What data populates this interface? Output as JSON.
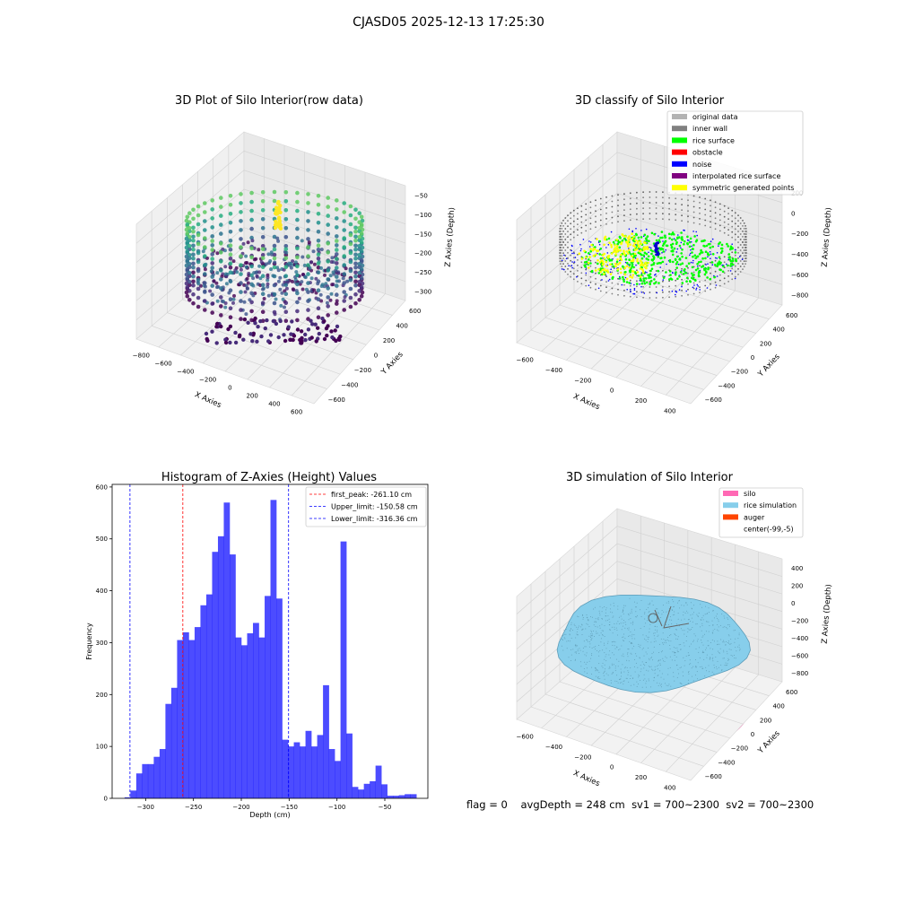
{
  "figure": {
    "suptitle": "CJASD05 2025-12-13 17:25:30",
    "status": {
      "flag": "flag = 0",
      "avg_depth": "avgDepth = 248 cm",
      "sv1": "sv1 = 700~2300",
      "sv2": "sv2 = 700~2300"
    }
  },
  "chart_data": [
    {
      "type": "scatter",
      "subtype": "3d-scatter",
      "title": "3D Plot of Silo Interior(row data)",
      "xlabel": "X Axies",
      "ylabel": "Y Axies",
      "zlabel": "Z Axies (Depth)",
      "x_ticks": [
        "−800",
        "−600",
        "−400",
        "−200",
        "0",
        "200",
        "400",
        "600"
      ],
      "y_ticks": [
        "−600",
        "−400",
        "−200",
        "0",
        "200",
        "400",
        "600"
      ],
      "z_ticks": [
        "−50",
        "−100",
        "−150",
        "−200",
        "−250",
        "−300"
      ],
      "colormap": "viridis",
      "grid": true
    },
    {
      "type": "scatter",
      "subtype": "3d-scatter",
      "title": "3D classify of Silo Interior",
      "xlabel": "X Axies",
      "ylabel": "Y Axies",
      "zlabel": "Z Axies (Depth)",
      "x_ticks": [
        "−600",
        "−400",
        "−200",
        "0",
        "200",
        "400"
      ],
      "y_ticks": [
        "−600",
        "−400",
        "−200",
        "0",
        "200",
        "400",
        "600"
      ],
      "z_ticks": [
        "200",
        "0",
        "−200",
        "−400",
        "−600",
        "−800"
      ],
      "z_partial_top_tick": "0",
      "legend": [
        {
          "label": "original data",
          "color": "#b3b3b3"
        },
        {
          "label": "inner wall",
          "color": "#808080"
        },
        {
          "label": "rice surface",
          "color": "#00ff00"
        },
        {
          "label": "obstacle",
          "color": "#ff0000"
        },
        {
          "label": "noise",
          "color": "#0000ff"
        },
        {
          "label": "interpolated rice surface",
          "color": "#800080"
        },
        {
          "label": "symmetric generated points",
          "color": "#ffff00"
        }
      ],
      "legend_position": "top-right",
      "silo_wire_color": "#ffb3d9",
      "grid": true
    },
    {
      "type": "bar",
      "subtype": "histogram",
      "title": "Histogram of Z-Axies (Height) Values",
      "xlabel": "Depth (cm)",
      "ylabel": "Frequency",
      "xlim": [
        -335,
        -5
      ],
      "ylim": [
        0,
        605
      ],
      "x_ticks": [
        -300,
        -250,
        -200,
        -150,
        -100,
        -50
      ],
      "x_tick_labels": [
        "−300",
        "−250",
        "−200",
        "−150",
        "−100",
        "−50"
      ],
      "y_ticks": [
        0,
        100,
        200,
        300,
        400,
        500,
        600
      ],
      "y_tick_labels": [
        "0",
        "100",
        "200",
        "300",
        "400",
        "500",
        "600"
      ],
      "bar_color": "#0000ff",
      "bar_alpha": 0.7,
      "bin_start": -322,
      "bin_width": 6.1,
      "values": [
        2,
        15,
        48,
        66,
        66,
        80,
        95,
        182,
        213,
        305,
        320,
        305,
        330,
        372,
        393,
        475,
        505,
        570,
        470,
        310,
        295,
        318,
        338,
        310,
        390,
        575,
        385,
        113,
        100,
        108,
        100,
        130,
        100,
        122,
        218,
        95,
        72,
        495,
        125,
        22,
        17,
        28,
        33,
        63,
        27,
        5,
        5,
        6,
        8,
        8
      ],
      "reference_lines": [
        {
          "name": "first_peak: -261.10 cm",
          "x": -261.1,
          "color": "#ff0000"
        },
        {
          "name": "Upper_limit: -150.58 cm",
          "x": -150.58,
          "color": "#0000ff"
        },
        {
          "name": "Lower_limit: -316.36 cm",
          "x": -316.36,
          "color": "#0000ff"
        }
      ],
      "legend_position": "top-right",
      "grid": false
    },
    {
      "type": "area",
      "subtype": "3d-surface",
      "title": "3D simulation of Silo Interior",
      "xlabel": "X Axies",
      "ylabel": "Y Axies",
      "zlabel": "Z Axies (Depth)",
      "x_ticks": [
        "−600",
        "−400",
        "−200",
        "0",
        "200",
        "400"
      ],
      "y_ticks": [
        "−600",
        "−400",
        "−200",
        "0",
        "200",
        "400",
        "600"
      ],
      "z_ticks": [
        "400",
        "200",
        "0",
        "−200",
        "−400",
        "−600",
        "−800"
      ],
      "legend": [
        {
          "label": "silo",
          "color": "#ff69b4"
        },
        {
          "label": "rice simulation",
          "color": "#87ceeb"
        },
        {
          "label": "auger",
          "color": "#ff4500"
        },
        {
          "label": "center(-99,-5)",
          "color": "none"
        }
      ],
      "legend_position": "top-right",
      "grid": true
    }
  ]
}
